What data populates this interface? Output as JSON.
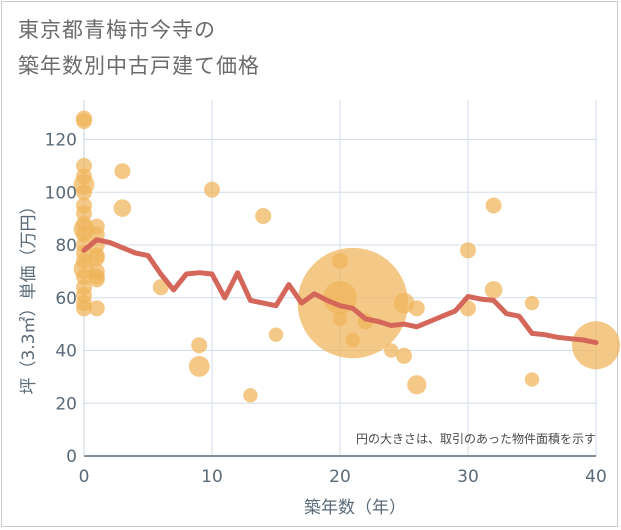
{
  "chart_data": {
    "type": "scatter",
    "title_lines": [
      "東京都青梅市今寺の",
      "築年数別中古戸建て価格"
    ],
    "xlabel": "築年数（年）",
    "ylabel": "坪（3.3㎡）単価（万円）",
    "xlim": [
      0,
      40
    ],
    "ylim": [
      0,
      135
    ],
    "xticks": [
      0,
      10,
      20,
      30,
      40
    ],
    "yticks": [
      0,
      20,
      40,
      60,
      80,
      100,
      120
    ],
    "grid": true,
    "note": "円の大きさは、取引のあった物件面積を示す",
    "colors": {
      "bubble": "#f0b45a",
      "line": "#d4665a",
      "grid": "#d4dee8"
    },
    "points": [
      {
        "x": 0,
        "y": 128,
        "size": 1
      },
      {
        "x": 0,
        "y": 127,
        "size": 1
      },
      {
        "x": 0,
        "y": 110,
        "size": 1
      },
      {
        "x": 0,
        "y": 106,
        "size": 1
      },
      {
        "x": 0,
        "y": 103,
        "size": 1.3
      },
      {
        "x": 0,
        "y": 100,
        "size": 1
      },
      {
        "x": 0,
        "y": 95,
        "size": 1
      },
      {
        "x": 0,
        "y": 92,
        "size": 1
      },
      {
        "x": 0,
        "y": 88,
        "size": 1
      },
      {
        "x": 0,
        "y": 86,
        "size": 1.3
      },
      {
        "x": 0,
        "y": 84,
        "size": 1
      },
      {
        "x": 0,
        "y": 80,
        "size": 1
      },
      {
        "x": 0,
        "y": 77,
        "size": 1
      },
      {
        "x": 0,
        "y": 74,
        "size": 1
      },
      {
        "x": 0,
        "y": 71,
        "size": 1.3
      },
      {
        "x": 0,
        "y": 68,
        "size": 1
      },
      {
        "x": 0,
        "y": 64,
        "size": 1
      },
      {
        "x": 0,
        "y": 61,
        "size": 1
      },
      {
        "x": 0,
        "y": 58,
        "size": 1
      },
      {
        "x": 0,
        "y": 56,
        "size": 1
      },
      {
        "x": 1,
        "y": 87,
        "size": 1
      },
      {
        "x": 1,
        "y": 84,
        "size": 1
      },
      {
        "x": 1,
        "y": 80,
        "size": 1
      },
      {
        "x": 1,
        "y": 76,
        "size": 1
      },
      {
        "x": 1,
        "y": 75,
        "size": 1
      },
      {
        "x": 1,
        "y": 70,
        "size": 1
      },
      {
        "x": 1,
        "y": 68,
        "size": 1
      },
      {
        "x": 1,
        "y": 67,
        "size": 1
      },
      {
        "x": 1,
        "y": 56,
        "size": 1
      },
      {
        "x": 3,
        "y": 108,
        "size": 1
      },
      {
        "x": 3,
        "y": 94,
        "size": 1.1
      },
      {
        "x": 6,
        "y": 64,
        "size": 1
      },
      {
        "x": 9,
        "y": 42,
        "size": 1
      },
      {
        "x": 9,
        "y": 34,
        "size": 1.3
      },
      {
        "x": 10,
        "y": 101,
        "size": 1
      },
      {
        "x": 13,
        "y": 23,
        "size": 0.9
      },
      {
        "x": 14,
        "y": 91,
        "size": 1
      },
      {
        "x": 15,
        "y": 46,
        "size": 0.9
      },
      {
        "x": 20,
        "y": 74,
        "size": 1
      },
      {
        "x": 20,
        "y": 60,
        "size": 2.1
      },
      {
        "x": 20,
        "y": 52,
        "size": 0.9
      },
      {
        "x": 21,
        "y": 58,
        "size": 6.9
      },
      {
        "x": 21,
        "y": 44,
        "size": 0.9
      },
      {
        "x": 22,
        "y": 51,
        "size": 1
      },
      {
        "x": 24,
        "y": 40,
        "size": 0.9
      },
      {
        "x": 25,
        "y": 58,
        "size": 1.3
      },
      {
        "x": 25,
        "y": 38,
        "size": 1
      },
      {
        "x": 26,
        "y": 56,
        "size": 1
      },
      {
        "x": 26,
        "y": 27,
        "size": 1.2
      },
      {
        "x": 30,
        "y": 78,
        "size": 1
      },
      {
        "x": 30,
        "y": 56,
        "size": 1
      },
      {
        "x": 32,
        "y": 95,
        "size": 1
      },
      {
        "x": 32,
        "y": 63,
        "size": 1.1
      },
      {
        "x": 35,
        "y": 58,
        "size": 0.9
      },
      {
        "x": 35,
        "y": 29,
        "size": 0.9
      },
      {
        "x": 40,
        "y": 42,
        "size": 3.0
      }
    ],
    "trend_line": {
      "x": [
        0,
        1,
        2,
        3,
        4,
        5,
        6,
        7,
        8,
        9,
        10,
        11,
        12,
        13,
        14,
        15,
        16,
        17,
        18,
        19,
        20,
        21,
        22,
        23,
        24,
        25,
        26,
        27,
        28,
        29,
        30,
        31,
        32,
        33,
        34,
        35,
        36,
        37,
        38,
        39,
        40
      ],
      "y": [
        78,
        82,
        81,
        79,
        77,
        76,
        69,
        63,
        69,
        69.5,
        69,
        60,
        69.5,
        59,
        58,
        57,
        65,
        58,
        61.5,
        59,
        57,
        56,
        52,
        51,
        49.5,
        50,
        49,
        51,
        53,
        55,
        60.5,
        59.5,
        59,
        54,
        53,
        46.5,
        46,
        45,
        44.5,
        44,
        43
      ]
    }
  }
}
